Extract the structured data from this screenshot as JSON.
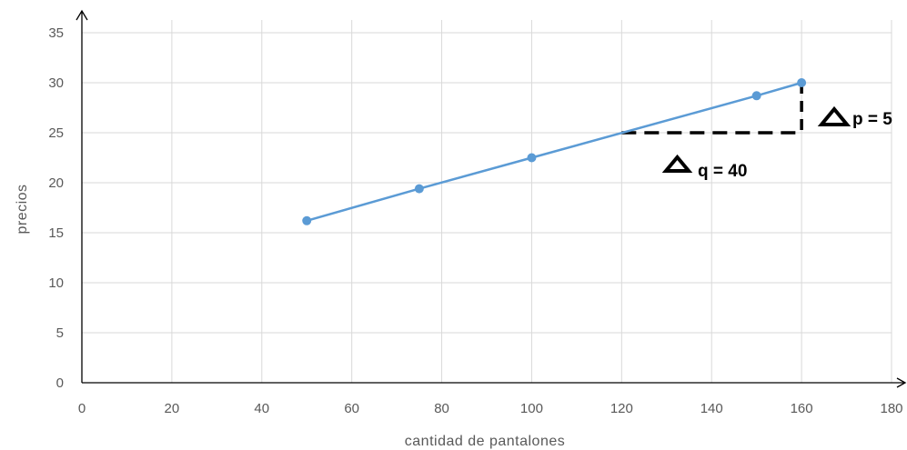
{
  "chart_data": {
    "type": "line",
    "xlabel": "cantidad de pantalones",
    "ylabel": "precios",
    "xlim": [
      0,
      180
    ],
    "ylim": [
      0,
      35
    ],
    "x_ticks": [
      0,
      20,
      40,
      60,
      80,
      100,
      120,
      140,
      160,
      180
    ],
    "y_ticks": [
      0,
      5,
      10,
      15,
      20,
      25,
      30,
      35
    ],
    "grid": true,
    "series": [
      {
        "color": "#5b9bd5",
        "points": [
          {
            "x": 50,
            "y": 16.2
          },
          {
            "x": 75,
            "y": 19.4
          },
          {
            "x": 100,
            "y": 22.5
          },
          {
            "x": 150,
            "y": 28.7
          },
          {
            "x": 160,
            "y": 30
          }
        ]
      }
    ],
    "annotations": {
      "delta_q": {
        "label": "q = 40",
        "from_x": 120,
        "to_x": 160,
        "at_y": 25
      },
      "delta_p": {
        "label": "p = 5",
        "from_y": 25,
        "to_y": 30,
        "at_x": 160
      }
    }
  }
}
